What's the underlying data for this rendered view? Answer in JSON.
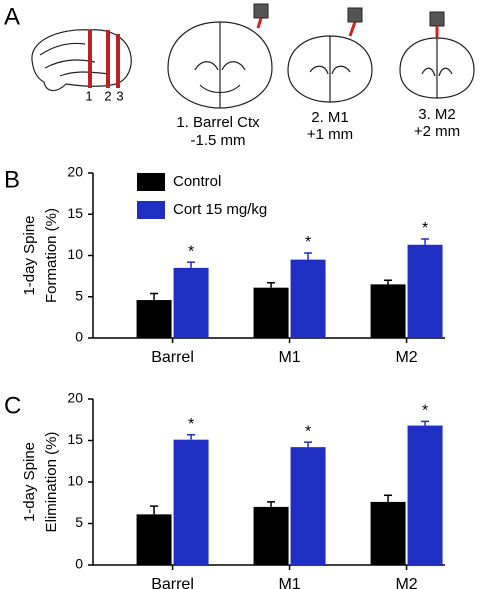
{
  "panel_a": {
    "label": "A",
    "slice_numbers": [
      "1",
      "2",
      "3"
    ],
    "sections": [
      {
        "name": "1. Barrel Ctx",
        "position": "-1.5 mm"
      },
      {
        "name": "2. M1",
        "position": "+1 mm"
      },
      {
        "name": "3. M2",
        "position": "+2 mm"
      }
    ]
  },
  "chart_data": [
    {
      "type": "bar",
      "panel_label": "B",
      "ylabel": [
        "1-day Spine",
        "Formation (%)"
      ],
      "categories": [
        "Barrel",
        "M1",
        "M2"
      ],
      "series": [
        {
          "name": "Control",
          "color": "#000000",
          "values": [
            4.6,
            6.1,
            6.5
          ],
          "errors": [
            0.8,
            0.6,
            0.5
          ]
        },
        {
          "name": "Cort 15 mg/kg",
          "color": "#1f2fc4",
          "values": [
            8.5,
            9.5,
            11.3
          ],
          "errors": [
            0.7,
            0.8,
            0.7
          ]
        }
      ],
      "annotations": [
        "*",
        "*",
        "*"
      ],
      "ylim": [
        0,
        20
      ],
      "yticks": [
        0,
        5,
        10,
        15,
        20
      ],
      "legend": "top-left"
    },
    {
      "type": "bar",
      "panel_label": "C",
      "ylabel": [
        "1-day Spine",
        "Elimination (%)"
      ],
      "categories": [
        "Barrel",
        "M1",
        "M2"
      ],
      "series": [
        {
          "color": "#000000",
          "values": [
            6.1,
            7.0,
            7.6
          ],
          "errors": [
            1.0,
            0.6,
            0.8
          ]
        },
        {
          "color": "#1f2fc4",
          "values": [
            15.1,
            14.2,
            16.8
          ],
          "errors": [
            0.6,
            0.6,
            0.5
          ]
        }
      ],
      "annotations": [
        "*",
        "*",
        "*"
      ],
      "ylim": [
        0,
        20
      ],
      "yticks": [
        0,
        5,
        10,
        15,
        20
      ]
    }
  ]
}
